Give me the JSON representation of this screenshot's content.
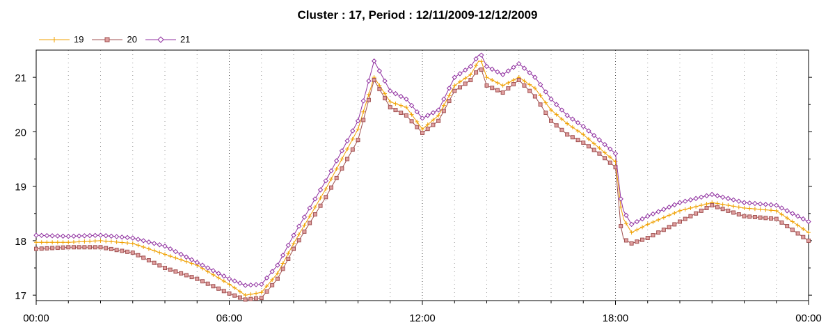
{
  "chart_data": {
    "type": "line",
    "title": "Cluster : 17, Period : 12/11/2009-12/12/2009",
    "xlabel": "",
    "ylabel": "",
    "x_tick_labels": [
      "00:00",
      "06:00",
      "12:00",
      "18:00",
      "00:00"
    ],
    "x_ticks_hours": [
      0,
      6,
      12,
      18,
      24
    ],
    "y_ticks": [
      17,
      18,
      19,
      20,
      21
    ],
    "xlim": [
      0,
      24
    ],
    "ylim": [
      16.9,
      21.5
    ],
    "grid": "dotted vertical lines",
    "legend_position": "top-left",
    "x_hours": [
      0,
      1,
      2,
      3,
      4,
      5,
      6,
      6.5,
      7,
      7.5,
      8,
      9,
      10,
      10.5,
      11,
      11.5,
      12,
      12.5,
      13,
      13.5,
      13.8,
      14,
      14.5,
      15,
      15.5,
      16,
      16.5,
      17,
      17.5,
      18,
      18.2,
      18.5,
      19,
      20,
      21,
      22,
      23,
      24
    ],
    "series": [
      {
        "name": "19",
        "color": "#f0a000",
        "marker": "plus",
        "values": [
          17.97,
          17.97,
          18.0,
          17.95,
          17.75,
          17.55,
          17.2,
          17.0,
          17.05,
          17.4,
          17.95,
          18.95,
          20.05,
          21.0,
          20.55,
          20.45,
          20.05,
          20.3,
          20.85,
          21.05,
          21.35,
          21.0,
          20.85,
          21.0,
          20.8,
          20.4,
          20.15,
          19.95,
          19.7,
          19.45,
          18.45,
          18.15,
          18.3,
          18.55,
          18.7,
          18.6,
          18.55,
          18.15
        ]
      },
      {
        "name": "20",
        "color": "#c08080",
        "marker": "square",
        "values": [
          17.85,
          17.88,
          17.88,
          17.78,
          17.5,
          17.3,
          17.03,
          16.92,
          16.95,
          17.3,
          17.85,
          18.8,
          19.85,
          20.95,
          20.45,
          20.3,
          19.98,
          20.2,
          20.75,
          20.95,
          21.2,
          20.85,
          20.72,
          20.95,
          20.65,
          20.2,
          19.95,
          19.8,
          19.6,
          19.35,
          18.05,
          17.95,
          18.05,
          18.35,
          18.65,
          18.45,
          18.4,
          18.0
        ]
      },
      {
        "name": "21",
        "color": "#9030a0",
        "marker": "diamond",
        "values": [
          18.1,
          18.08,
          18.1,
          18.05,
          17.9,
          17.6,
          17.3,
          17.18,
          17.2,
          17.55,
          18.1,
          19.1,
          20.2,
          21.3,
          20.75,
          20.6,
          20.25,
          20.4,
          21.0,
          21.2,
          21.45,
          21.2,
          21.05,
          21.25,
          21.0,
          20.6,
          20.3,
          20.1,
          19.85,
          19.6,
          18.6,
          18.3,
          18.45,
          18.7,
          18.85,
          18.7,
          18.65,
          18.35
        ]
      }
    ]
  }
}
